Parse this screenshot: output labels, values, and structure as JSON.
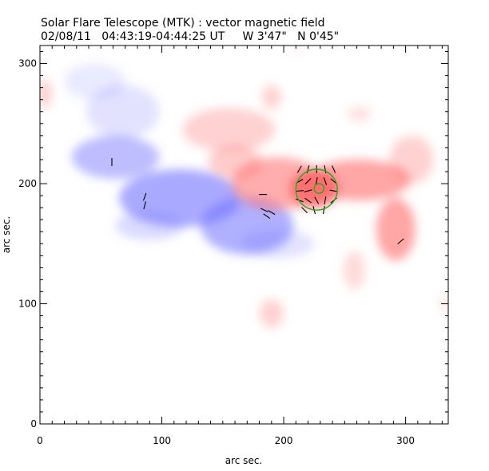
{
  "header": {
    "title": "Solar Flare Telescope (MTK) : vector magnetic field",
    "subtitle": "02/08/11   04:43:19-04:44:25 UT     W 3'47\"   N 0'45\""
  },
  "chart_data": {
    "type": "heatmap",
    "title": "Solar Flare Telescope (MTK) : vector magnetic field",
    "subtitle": "02/08/11   04:43:19-04:44:25 UT     W 3'47\"   N 0'45\"",
    "xlabel": "arc sec.",
    "ylabel": "arc sec.",
    "xlim": [
      0,
      335
    ],
    "ylim": [
      0,
      315
    ],
    "x_ticks": [
      0,
      100,
      200,
      300
    ],
    "y_ticks": [
      0,
      100,
      200,
      300
    ],
    "x_tick_labels": [
      "0",
      "100",
      "200",
      "300"
    ],
    "y_tick_labels": [
      "0",
      "100",
      "200",
      "300"
    ],
    "grid": false,
    "colors": {
      "positive_polarity": "#ff6a6a",
      "negative_polarity": "#6f6fff",
      "contour": "#22aa22",
      "vectors": "#000000"
    },
    "positive_regions": [
      {
        "x": 195,
        "y": 200,
        "rx": 38,
        "ry": 22,
        "strength": 0.55
      },
      {
        "x": 225,
        "y": 196,
        "rx": 20,
        "ry": 16,
        "strength": 0.9
      },
      {
        "x": 262,
        "y": 203,
        "rx": 42,
        "ry": 17,
        "strength": 0.6
      },
      {
        "x": 292,
        "y": 162,
        "rx": 16,
        "ry": 26,
        "strength": 0.6
      },
      {
        "x": 155,
        "y": 245,
        "rx": 38,
        "ry": 18,
        "strength": 0.3
      },
      {
        "x": 160,
        "y": 218,
        "rx": 22,
        "ry": 14,
        "strength": 0.35
      },
      {
        "x": 190,
        "y": 272,
        "rx": 8,
        "ry": 10,
        "strength": 0.3
      },
      {
        "x": 305,
        "y": 220,
        "rx": 18,
        "ry": 20,
        "strength": 0.3
      },
      {
        "x": 262,
        "y": 258,
        "rx": 10,
        "ry": 6,
        "strength": 0.2
      },
      {
        "x": 258,
        "y": 128,
        "rx": 9,
        "ry": 16,
        "strength": 0.25
      },
      {
        "x": 190,
        "y": 92,
        "rx": 10,
        "ry": 12,
        "strength": 0.3
      },
      {
        "x": 4,
        "y": 275,
        "rx": 6,
        "ry": 12,
        "strength": 0.3
      },
      {
        "x": 332,
        "y": 100,
        "rx": 4,
        "ry": 6,
        "strength": 0.2
      },
      {
        "x": 212,
        "y": 312,
        "rx": 4,
        "ry": 3,
        "strength": 0.15
      }
    ],
    "negative_regions": [
      {
        "x": 62,
        "y": 222,
        "rx": 36,
        "ry": 18,
        "strength": 0.45
      },
      {
        "x": 115,
        "y": 188,
        "rx": 50,
        "ry": 24,
        "strength": 0.6
      },
      {
        "x": 170,
        "y": 165,
        "rx": 38,
        "ry": 24,
        "strength": 0.55
      },
      {
        "x": 68,
        "y": 260,
        "rx": 30,
        "ry": 22,
        "strength": 0.2
      },
      {
        "x": 90,
        "y": 165,
        "rx": 28,
        "ry": 12,
        "strength": 0.25
      },
      {
        "x": 195,
        "y": 150,
        "rx": 30,
        "ry": 12,
        "strength": 0.2
      },
      {
        "x": 45,
        "y": 285,
        "rx": 25,
        "ry": 15,
        "strength": 0.15
      }
    ],
    "contours": [
      {
        "x": 227,
        "y": 195,
        "r": 17
      },
      {
        "x": 229,
        "y": 196,
        "r": 4
      }
    ],
    "vectors": [
      {
        "x": 213,
        "y": 212,
        "angle": 60
      },
      {
        "x": 220,
        "y": 212,
        "angle": 75
      },
      {
        "x": 227,
        "y": 212,
        "angle": 90
      },
      {
        "x": 234,
        "y": 212,
        "angle": 100
      },
      {
        "x": 241,
        "y": 212,
        "angle": 115
      },
      {
        "x": 213,
        "y": 202,
        "angle": 30
      },
      {
        "x": 220,
        "y": 202,
        "angle": 45
      },
      {
        "x": 227,
        "y": 202,
        "angle": 80
      },
      {
        "x": 234,
        "y": 202,
        "angle": 110
      },
      {
        "x": 241,
        "y": 202,
        "angle": 140
      },
      {
        "x": 213,
        "y": 194,
        "angle": 5
      },
      {
        "x": 220,
        "y": 194,
        "angle": 15
      },
      {
        "x": 241,
        "y": 194,
        "angle": 170
      },
      {
        "x": 213,
        "y": 186,
        "angle": -20
      },
      {
        "x": 220,
        "y": 186,
        "angle": -35
      },
      {
        "x": 227,
        "y": 186,
        "angle": -60
      },
      {
        "x": 234,
        "y": 186,
        "angle": -100
      },
      {
        "x": 241,
        "y": 186,
        "angle": -140
      },
      {
        "x": 217,
        "y": 178,
        "angle": -45
      },
      {
        "x": 225,
        "y": 178,
        "angle": -75
      },
      {
        "x": 233,
        "y": 178,
        "angle": -100
      },
      {
        "x": 59,
        "y": 218,
        "angle": 90
      },
      {
        "x": 86,
        "y": 189,
        "angle": 70
      },
      {
        "x": 86,
        "y": 182,
        "angle": 75
      },
      {
        "x": 183,
        "y": 191,
        "angle": 0
      },
      {
        "x": 184,
        "y": 178,
        "angle": -25
      },
      {
        "x": 186,
        "y": 173,
        "angle": -35
      },
      {
        "x": 190,
        "y": 176,
        "angle": -30
      },
      {
        "x": 296,
        "y": 152,
        "angle": 40
      }
    ]
  }
}
